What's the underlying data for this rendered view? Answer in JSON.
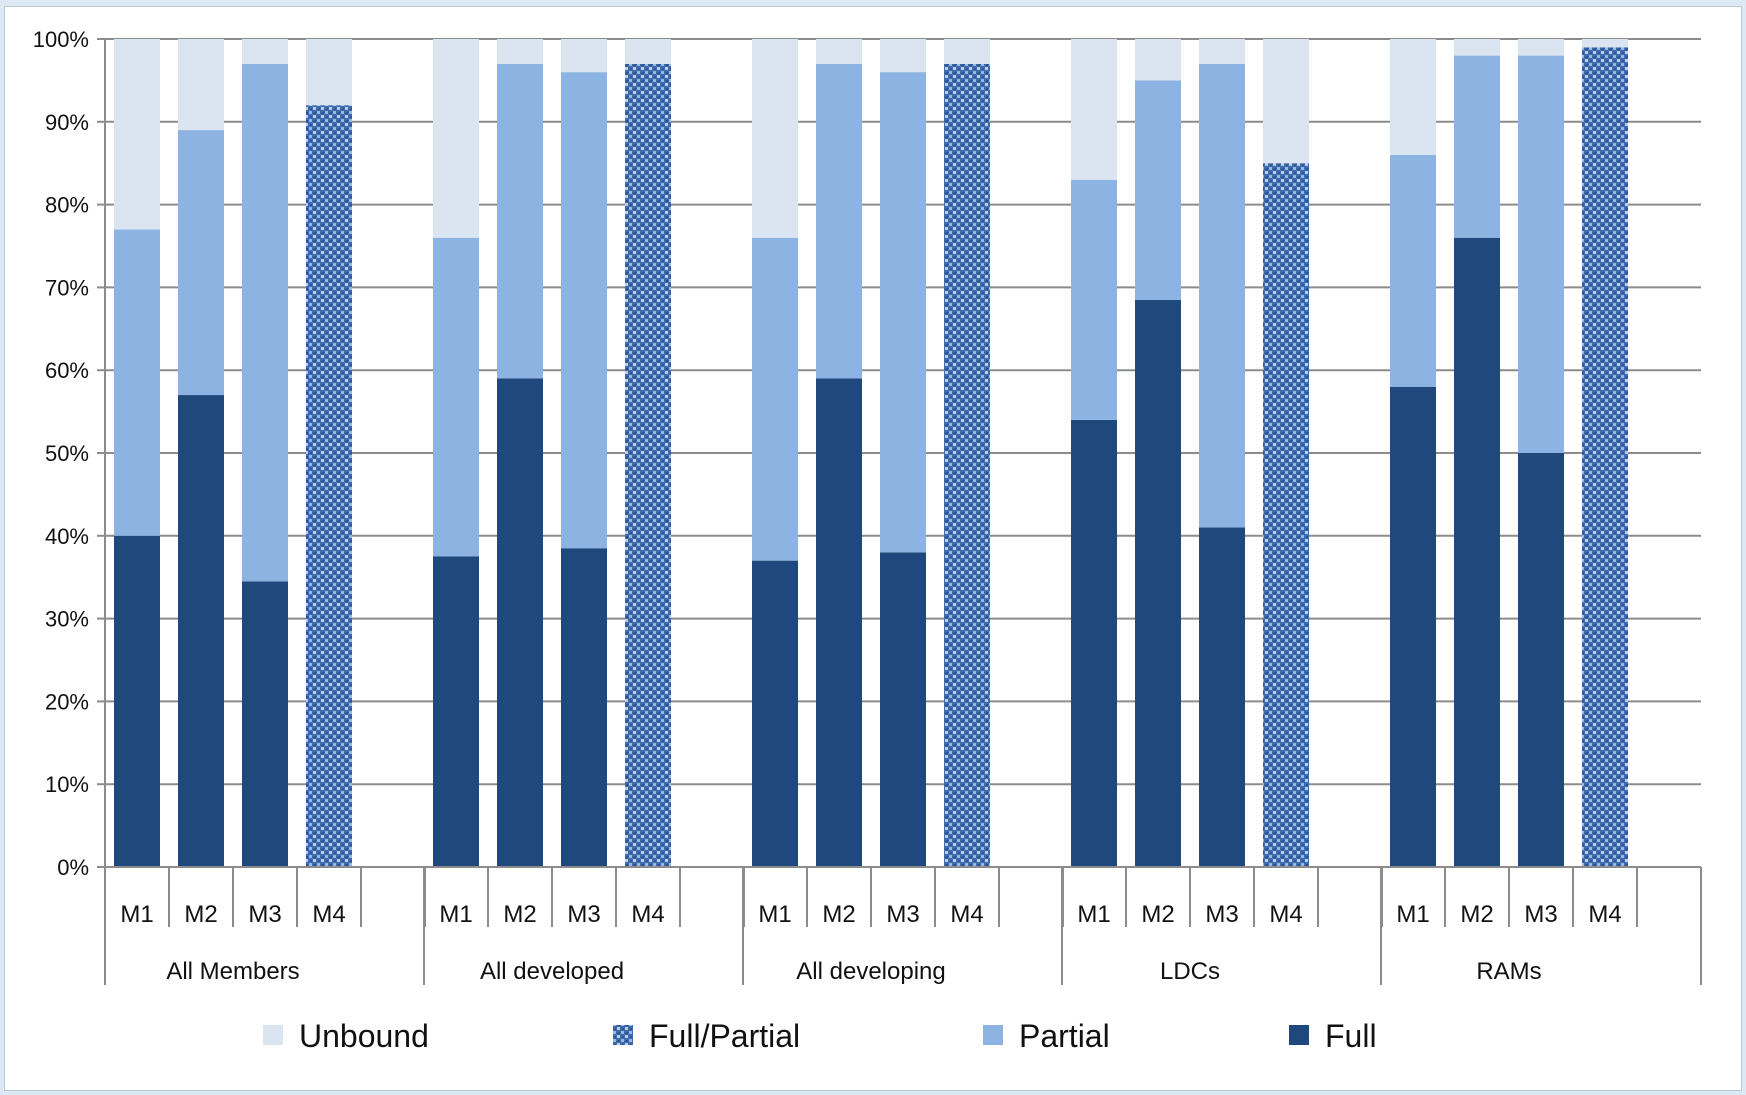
{
  "chart_data": {
    "type": "bar",
    "stacked": true,
    "percent": true,
    "ylim": [
      0,
      100
    ],
    "yticks": [
      "0%",
      "10%",
      "20%",
      "30%",
      "40%",
      "50%",
      "60%",
      "70%",
      "80%",
      "90%",
      "100%"
    ],
    "grid": true,
    "legend_position": "bottom",
    "groups": [
      {
        "name": "All Members",
        "bars": [
          {
            "label": "M1",
            "full": 40,
            "partial": 37,
            "full_partial": 0,
            "unbound": 23
          },
          {
            "label": "M2",
            "full": 57,
            "partial": 32,
            "full_partial": 0,
            "unbound": 11
          },
          {
            "label": "M3",
            "full": 34.5,
            "partial": 62.5,
            "full_partial": 0,
            "unbound": 3
          },
          {
            "label": "M4",
            "full": 0,
            "partial": 0,
            "full_partial": 92,
            "unbound": 8
          }
        ]
      },
      {
        "name": "All developed",
        "bars": [
          {
            "label": "M1",
            "full": 37.5,
            "partial": 38.5,
            "full_partial": 0,
            "unbound": 24
          },
          {
            "label": "M2",
            "full": 59,
            "partial": 38,
            "full_partial": 0,
            "unbound": 3
          },
          {
            "label": "M3",
            "full": 38.5,
            "partial": 57.5,
            "full_partial": 0,
            "unbound": 4
          },
          {
            "label": "M4",
            "full": 0,
            "partial": 0,
            "full_partial": 97,
            "unbound": 3
          }
        ]
      },
      {
        "name": "All developing",
        "bars": [
          {
            "label": "M1",
            "full": 37,
            "partial": 39,
            "full_partial": 0,
            "unbound": 24
          },
          {
            "label": "M2",
            "full": 59,
            "partial": 38,
            "full_partial": 0,
            "unbound": 3
          },
          {
            "label": "M3",
            "full": 38,
            "partial": 58,
            "full_partial": 0,
            "unbound": 4
          },
          {
            "label": "M4",
            "full": 0,
            "partial": 0,
            "full_partial": 97,
            "unbound": 3
          }
        ]
      },
      {
        "name": "LDCs",
        "bars": [
          {
            "label": "M1",
            "full": 54,
            "partial": 29,
            "full_partial": 0,
            "unbound": 17
          },
          {
            "label": "M2",
            "full": 68.5,
            "partial": 26.5,
            "full_partial": 0,
            "unbound": 5
          },
          {
            "label": "M3",
            "full": 41,
            "partial": 56,
            "full_partial": 0,
            "unbound": 3
          },
          {
            "label": "M4",
            "full": 0,
            "partial": 0,
            "full_partial": 85,
            "unbound": 15
          }
        ]
      },
      {
        "name": "RAMs",
        "bars": [
          {
            "label": "M1",
            "full": 58,
            "partial": 28,
            "full_partial": 0,
            "unbound": 14
          },
          {
            "label": "M2",
            "full": 76,
            "partial": 22,
            "full_partial": 0,
            "unbound": 2
          },
          {
            "label": "M3",
            "full": 50,
            "partial": 48,
            "full_partial": 0,
            "unbound": 2
          },
          {
            "label": "M4",
            "full": 0,
            "partial": 0,
            "full_partial": 99,
            "unbound": 1
          }
        ]
      }
    ],
    "series": [
      {
        "key": "unbound",
        "name": "Unbound",
        "color": "#dbe5f1"
      },
      {
        "key": "full_partial",
        "name": "Full/Partial",
        "color": "#4f79b7",
        "pattern": "textured"
      },
      {
        "key": "partial",
        "name": "Partial",
        "color": "#8db3e2"
      },
      {
        "key": "full",
        "name": "Full",
        "color": "#1f497d"
      }
    ]
  }
}
